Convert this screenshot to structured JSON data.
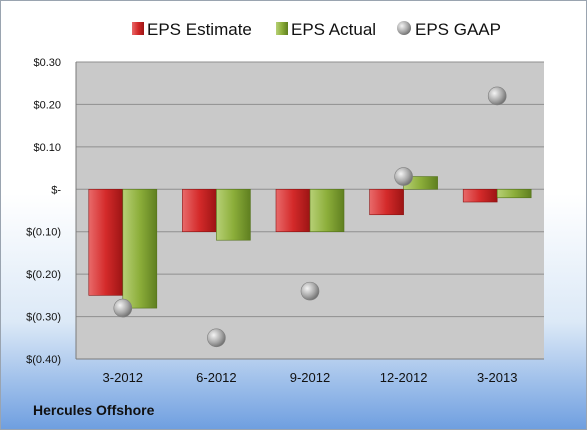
{
  "footer_label": "Hercules Offshore",
  "colors": {
    "estimate": "#d42a2a",
    "actual": "#8cae3a",
    "gaap": "#a9a9a9",
    "plot_bg": "#c9c9c9"
  },
  "chart_data": {
    "type": "bar",
    "categories": [
      "3-2012",
      "6-2012",
      "9-2012",
      "12-2012",
      "3-2013"
    ],
    "series": [
      {
        "name": "EPS Estimate",
        "type": "bar",
        "values": [
          -0.25,
          -0.1,
          -0.1,
          -0.06,
          -0.03
        ]
      },
      {
        "name": "EPS Actual",
        "type": "bar",
        "values": [
          -0.28,
          -0.12,
          -0.1,
          0.03,
          -0.02
        ]
      },
      {
        "name": "EPS GAAP",
        "type": "scatter",
        "values": [
          -0.28,
          -0.35,
          -0.24,
          0.03,
          0.22
        ]
      }
    ],
    "yticks": [
      "$0.30",
      "$0.20",
      "$0.10",
      "$-",
      "$(0.10)",
      "$(0.20)",
      "$(0.30)",
      "$(0.40)"
    ],
    "ylim": [
      -0.4,
      0.3
    ],
    "grid": true,
    "legend_position": "top"
  }
}
